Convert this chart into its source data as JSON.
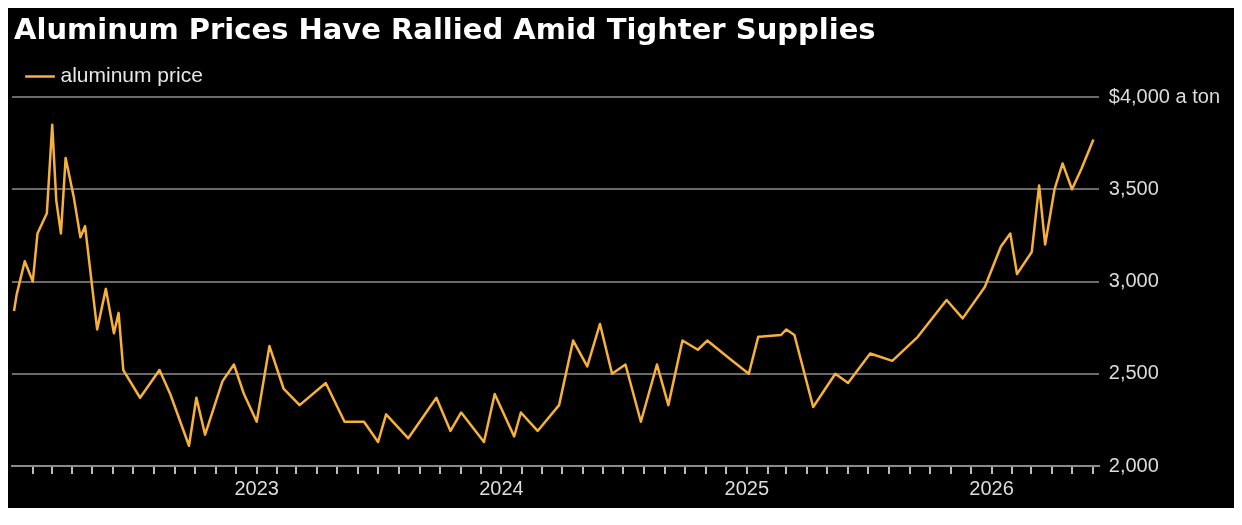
{
  "chart_data": {
    "type": "line",
    "title": "Aluminum Prices Have Rallied Amid Tighter Supplies",
    "legend": "top left",
    "grid": "y",
    "xlim": [
      "2022-01-01",
      "2026-06-10"
    ],
    "xticks": [
      {
        "value": "2022-02-01",
        "label": null
      },
      {
        "value": "2022-03-01",
        "label": null
      },
      {
        "value": "2022-04-01",
        "label": null
      },
      {
        "value": "2022-05-01",
        "label": null
      },
      {
        "value": "2022-06-01",
        "label": null
      },
      {
        "value": "2022-07-01",
        "label": null
      },
      {
        "value": "2022-08-01",
        "label": null
      },
      {
        "value": "2022-09-01",
        "label": null
      },
      {
        "value": "2022-10-01",
        "label": null
      },
      {
        "value": "2022-11-01",
        "label": null
      },
      {
        "value": "2022-12-01",
        "label": null
      },
      {
        "value": "2023-01-01",
        "label": "2023"
      },
      {
        "value": "2023-02-01",
        "label": null
      },
      {
        "value": "2023-03-01",
        "label": null
      },
      {
        "value": "2023-04-01",
        "label": null
      },
      {
        "value": "2023-05-01",
        "label": null
      },
      {
        "value": "2023-06-01",
        "label": null
      },
      {
        "value": "2023-07-01",
        "label": null
      },
      {
        "value": "2023-08-01",
        "label": null
      },
      {
        "value": "2023-09-01",
        "label": null
      },
      {
        "value": "2023-10-01",
        "label": null
      },
      {
        "value": "2023-11-01",
        "label": null
      },
      {
        "value": "2023-12-01",
        "label": null
      },
      {
        "value": "2024-01-01",
        "label": "2024"
      },
      {
        "value": "2024-02-01",
        "label": null
      },
      {
        "value": "2024-03-01",
        "label": null
      },
      {
        "value": "2024-04-01",
        "label": null
      },
      {
        "value": "2024-05-01",
        "label": null
      },
      {
        "value": "2024-06-01",
        "label": null
      },
      {
        "value": "2024-07-01",
        "label": null
      },
      {
        "value": "2024-08-01",
        "label": null
      },
      {
        "value": "2024-09-01",
        "label": null
      },
      {
        "value": "2024-10-01",
        "label": null
      },
      {
        "value": "2024-11-01",
        "label": null
      },
      {
        "value": "2024-12-01",
        "label": null
      },
      {
        "value": "2025-01-01",
        "label": "2025"
      },
      {
        "value": "2025-02-01",
        "label": null
      },
      {
        "value": "2025-03-01",
        "label": null
      },
      {
        "value": "2025-04-01",
        "label": null
      },
      {
        "value": "2025-05-01",
        "label": null
      },
      {
        "value": "2025-06-01",
        "label": null
      },
      {
        "value": "2025-07-01",
        "label": null
      },
      {
        "value": "2025-08-01",
        "label": null
      },
      {
        "value": "2025-09-01",
        "label": null
      },
      {
        "value": "2025-10-01",
        "label": null
      },
      {
        "value": "2025-11-01",
        "label": null
      },
      {
        "value": "2025-12-01",
        "label": null
      },
      {
        "value": "2026-01-01",
        "label": "2026"
      },
      {
        "value": "2026-02-01",
        "label": null
      },
      {
        "value": "2026-03-01",
        "label": null
      },
      {
        "value": "2026-04-01",
        "label": null
      },
      {
        "value": "2026-05-01",
        "label": null
      },
      {
        "value": "2026-06-01",
        "label": null
      }
    ],
    "ylim": [
      2000,
      4000
    ],
    "yticks": [
      {
        "value": 2000,
        "label": "2,000"
      },
      {
        "value": 2500,
        "label": "2,500"
      },
      {
        "value": 3000,
        "label": "3,000"
      },
      {
        "value": 3500,
        "label": "3,500"
      },
      {
        "value": 4000,
        "label": "$4,000 a ton"
      }
    ],
    "series": [
      {
        "name": "aluminum price",
        "color": "#f7b03a",
        "x": [
          "2022-01-04",
          "2022-01-08",
          "2022-01-20",
          "2022-02-01",
          "2022-02-08",
          "2022-02-22",
          "2022-03-02",
          "2022-03-08",
          "2022-03-15",
          "2022-03-22",
          "2022-04-03",
          "2022-04-13",
          "2022-04-20",
          "2022-05-08",
          "2022-05-21",
          "2022-06-02",
          "2022-06-09",
          "2022-06-16",
          "2022-07-11",
          "2022-08-09",
          "2022-08-25",
          "2022-09-22",
          "2022-10-03",
          "2022-10-16",
          "2022-11-11",
          "2022-11-28",
          "2022-12-13",
          "2023-01-01",
          "2023-01-20",
          "2023-02-10",
          "2023-03-06",
          "2023-04-14",
          "2023-05-12",
          "2023-06-10",
          "2023-07-01",
          "2023-07-13",
          "2023-08-15",
          "2023-09-26",
          "2023-10-17",
          "2023-11-02",
          "2023-12-06",
          "2023-12-22",
          "2024-01-20",
          "2024-01-30",
          "2024-02-24",
          "2024-03-27",
          "2024-04-17",
          "2024-05-08",
          "2024-05-27",
          "2024-06-14",
          "2024-07-04",
          "2024-07-27",
          "2024-08-20",
          "2024-09-06",
          "2024-09-27",
          "2024-10-20",
          "2024-11-03",
          "2024-12-07",
          "2025-01-04",
          "2025-01-18",
          "2025-02-21",
          "2025-03-01",
          "2025-03-13",
          "2025-04-10",
          "2025-05-13",
          "2025-06-01",
          "2025-07-04",
          "2025-08-06",
          "2025-09-13",
          "2025-10-26",
          "2025-11-19",
          "2025-12-22",
          "2026-01-15",
          "2026-01-29",
          "2026-02-08",
          "2026-03-02",
          "2026-03-13",
          "2026-03-22",
          "2026-04-05",
          "2026-04-17",
          "2026-05-01",
          "2026-05-15",
          "2026-06-02"
        ],
        "values": [
          2840,
          2930,
          3110,
          3000,
          3260,
          3370,
          3850,
          3440,
          3260,
          3670,
          3460,
          3240,
          3300,
          2740,
          2960,
          2720,
          2830,
          2520,
          2370,
          2520,
          2390,
          2110,
          2370,
          2170,
          2460,
          2550,
          2390,
          2240,
          2650,
          2420,
          2330,
          2450,
          2240,
          2240,
          2130,
          2280,
          2150,
          2370,
          2190,
          2290,
          2130,
          2390,
          2160,
          2290,
          2190,
          2330,
          2680,
          2540,
          2770,
          2500,
          2550,
          2240,
          2550,
          2330,
          2680,
          2630,
          2680,
          2580,
          2500,
          2700,
          2710,
          2740,
          2710,
          2320,
          2500,
          2450,
          2610,
          2570,
          2700,
          2900,
          2800,
          2970,
          3190,
          3260,
          3040,
          3160,
          3520,
          3200,
          3500,
          3640,
          3500,
          3610,
          3770
        ]
      }
    ]
  }
}
